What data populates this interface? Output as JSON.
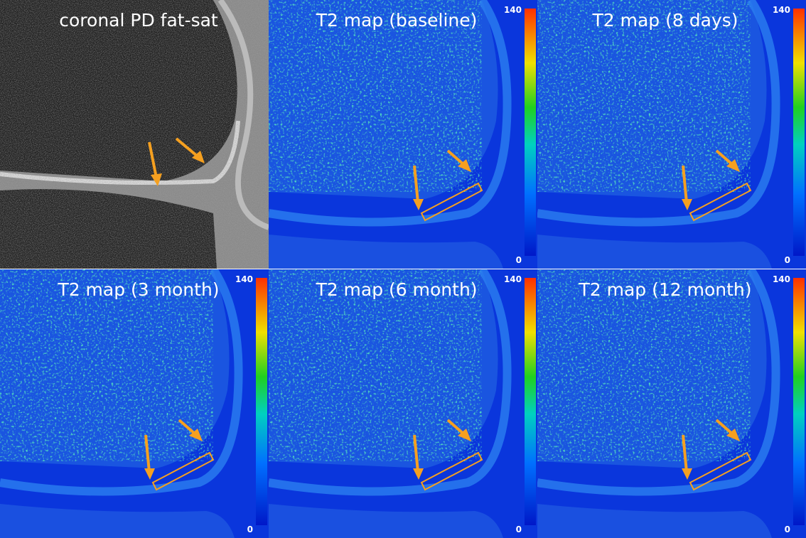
{
  "panels": [
    {
      "title": "coronal PD fat-sat"
    },
    {
      "title": "T2 map (baseline)",
      "colorbar": {
        "max": 140,
        "min": 0
      }
    },
    {
      "title": "T2 map (8 days)",
      "colorbar": {
        "max": 140,
        "min": 0
      }
    },
    {
      "title": "T2 map (3 month)",
      "colorbar": {
        "max": 140,
        "min": 0
      }
    },
    {
      "title": "T2 map (6 month)",
      "colorbar": {
        "max": 140,
        "min": 0
      }
    },
    {
      "title": "T2 map (12 month)",
      "colorbar": {
        "max": 140,
        "min": 0
      }
    }
  ]
}
